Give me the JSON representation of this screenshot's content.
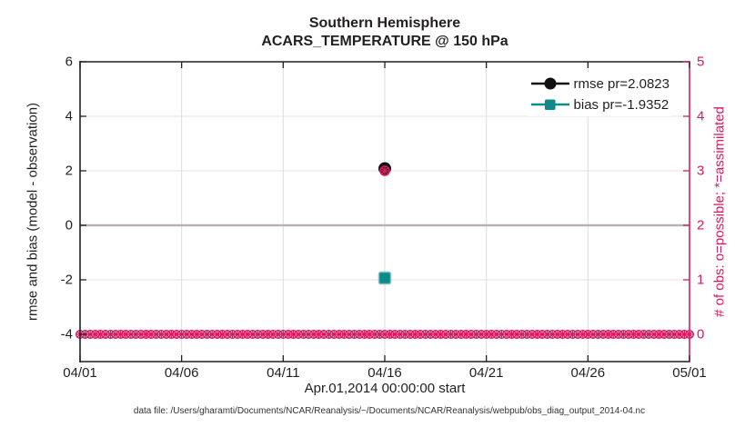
{
  "footer": "data file: /Users/gharamti/Documents/NCAR/Reanalysis/~/Documents/NCAR/Reanalysis/webpub/obs_diag_output_2014-04.nc",
  "colors": {
    "pink": "#d81b60",
    "teal": "#0f8a8a",
    "axis": "#231f20",
    "grid_horizontal": "#f3d9e4",
    "grid_vertical": "#dcdcdc",
    "zero_line": "#b9b1b4",
    "background": "#ffffff"
  },
  "chart_data": {
    "type": "scatter",
    "title": [
      "Southern Hemisphere",
      "ACARS_TEMPERATURE @ 150 hPa"
    ],
    "xlabel": "Apr.01,2014 00:00:00 start",
    "x_tick_labels": [
      "04/01",
      "04/06",
      "04/11",
      "04/16",
      "04/21",
      "04/26",
      "05/01"
    ],
    "x_tick_days": [
      0,
      5,
      10,
      15,
      20,
      25,
      30
    ],
    "x_range_days": [
      0,
      30
    ],
    "left_axis": {
      "label": "rmse and bias (model - observation)",
      "ticks": [
        "6",
        "4",
        "2",
        "0",
        "-2",
        "-4"
      ],
      "tick_values": [
        6,
        4,
        2,
        0,
        -2,
        -4
      ],
      "range": [
        -5,
        6
      ]
    },
    "right_axis": {
      "label": "# of obs: o=possible; *=assimilated",
      "ticks": [
        "5",
        "4",
        "3",
        "2",
        "1",
        "0"
      ],
      "tick_values": [
        5,
        4,
        3,
        2,
        1,
        0
      ],
      "range": [
        -0.5,
        5
      ]
    },
    "grid": true,
    "legend_position": "top-right-inside",
    "zero_line": {
      "value": 0,
      "color": "#b9b1b4"
    },
    "obs_band": {
      "description": "dense row of pink o (possible) and * (assimilated) markers at right-axis value 0 spanning the whole month",
      "value": 0,
      "from_day": 0,
      "to_day": 30,
      "step_day": 0.25
    },
    "series": [
      {
        "name": "rmse",
        "legend": "rmse pr=2.0823",
        "marker": "filled-circle",
        "color": "#111111",
        "axis": "left",
        "points": [
          {
            "day": 15,
            "date": "04/16",
            "value": 2.0823
          }
        ]
      },
      {
        "name": "bias",
        "legend": "bias pr=-1.9352",
        "marker": "filled-square",
        "color": "#0f8a8a",
        "edge_color": "#7fc4c2",
        "axis": "left",
        "points": [
          {
            "day": 15,
            "date": "04/16",
            "value": -1.9352
          }
        ]
      },
      {
        "name": "obs-possible",
        "marker": "open-circle",
        "color": "#d81b60",
        "axis": "right",
        "points": [
          {
            "day": 15,
            "date": "04/16",
            "value": 3
          }
        ]
      },
      {
        "name": "obs-assimilated",
        "marker": "asterisk",
        "color": "#d81b60",
        "axis": "right",
        "points": [
          {
            "day": 15,
            "date": "04/16",
            "value": 3
          }
        ]
      }
    ]
  }
}
